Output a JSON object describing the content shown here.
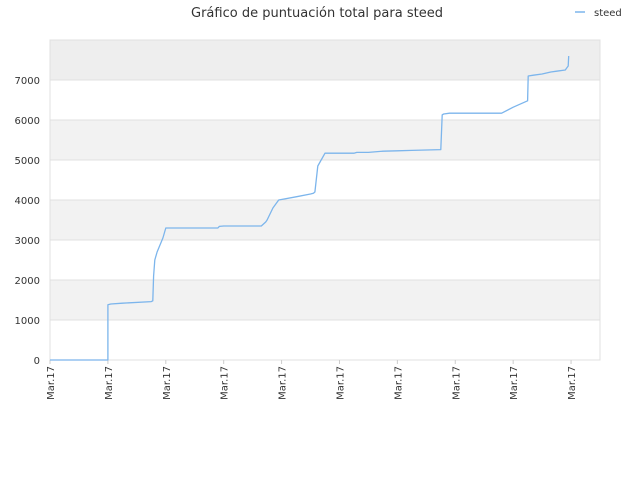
{
  "chart_data": {
    "type": "line",
    "title": "Gráfico de puntuación total para steed",
    "xlabel": "",
    "ylabel": "",
    "ylim": [
      0,
      8000
    ],
    "yticks": [
      0,
      1000,
      2000,
      3000,
      4000,
      5000,
      6000,
      7000
    ],
    "x_tick_labels": [
      "Mar.17",
      "Mar.17",
      "Mar.17",
      "Mar.17",
      "Mar.17",
      "Mar.17",
      "Mar.17",
      "Mar.17",
      "Mar.17",
      "Mar.17",
      "Mar.17",
      "Mar.17",
      "Mar.17",
      "Mar.17",
      "Mar.17",
      "Mar.17",
      "Mar.17",
      "Mar.17",
      "Mar.17",
      "Mar.17"
    ],
    "grid": true,
    "legend_position": "top-right",
    "series": [
      {
        "name": "steed",
        "color": "#7cb5ec",
        "x": [
          0,
          2,
          2,
          2.1,
          2.5,
          3.5,
          3.55,
          3.58,
          3.62,
          3.7,
          3.9,
          4.0,
          4.02,
          4.1,
          4.5,
          5.0,
          5.5,
          5.8,
          5.85,
          6.0,
          6.5,
          7.0,
          7.3,
          7.45,
          7.5,
          7.7,
          7.9,
          8.5,
          9.0,
          9.1,
          9.15,
          9.25,
          9.5,
          10.0,
          10.5,
          10.6,
          11.0,
          11.5,
          12.0,
          12.5,
          13.5,
          13.55,
          13.6,
          13.8,
          14.5,
          15.0,
          15.5,
          15.6,
          16.0,
          16.5,
          16.52,
          16.7,
          17.0,
          17.3,
          17.5,
          17.8,
          17.85,
          17.9,
          17.92
        ],
        "values": [
          0,
          0,
          1380,
          1400,
          1420,
          1460,
          1480,
          2100,
          2500,
          2700,
          3050,
          3300,
          3300,
          3300,
          3300,
          3300,
          3300,
          3300,
          3340,
          3350,
          3350,
          3350,
          3350,
          3450,
          3500,
          3800,
          4000,
          4080,
          4150,
          4170,
          4200,
          4850,
          5170,
          5170,
          5170,
          5190,
          5190,
          5220,
          5230,
          5240,
          5260,
          6130,
          6150,
          6170,
          6170,
          6170,
          6170,
          6170,
          6320,
          6480,
          7100,
          7120,
          7150,
          7200,
          7220,
          7250,
          7300,
          7350,
          7600
        ]
      }
    ]
  }
}
